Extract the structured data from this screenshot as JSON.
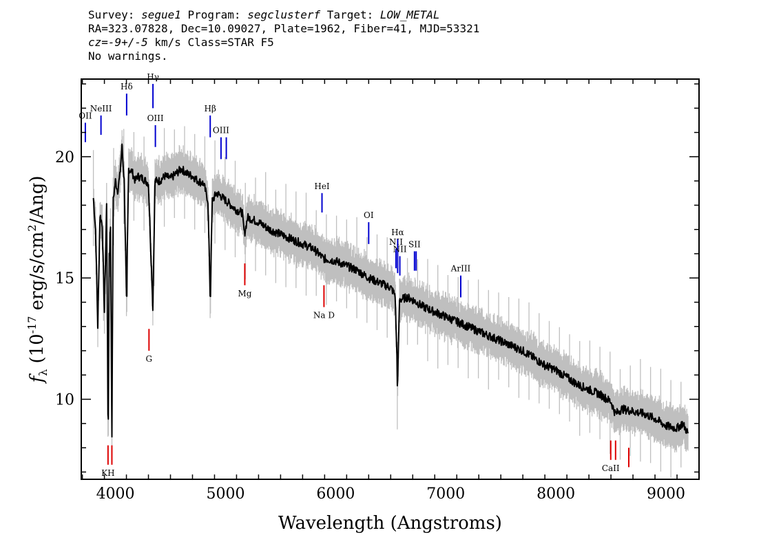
{
  "header": {
    "survey_label": "Survey: ",
    "survey": "segue1",
    "program_label": " Program: ",
    "program": "segclusterf",
    "target_label": " Target: ",
    "target": "LOW_METAL",
    "line2": "RA=323.07828, Dec=10.09027, Plate=1962, Fiber=41, MJD=53321",
    "cz_label": "cz",
    "cz_value": "=-9+/-5",
    "cz_rest": " km/s Class=STAR F5",
    "line4": "No warnings."
  },
  "chart_data": {
    "type": "line",
    "xlabel": "Wavelength (Angstroms)",
    "ylabel": "f_λ (10^-17 erg/s/cm^2/Ang)",
    "xlim": [
      3690,
      9300
    ],
    "ylim": [
      6.7,
      23.2
    ],
    "xticks": [
      4000,
      5000,
      6000,
      7000,
      8000,
      9000
    ],
    "xtick_labels": [
      "4000",
      "5000",
      "6000",
      "7000",
      "8000",
      "9000"
    ],
    "yticks": [
      10,
      15,
      20
    ],
    "ytick_labels": [
      "10",
      "15",
      "20"
    ],
    "series": [
      {
        "color": "#000000",
        "points": [
          [
            3800,
            18.3
          ],
          [
            3820,
            17.0
          ],
          [
            3840,
            13.0
          ],
          [
            3860,
            17.6
          ],
          [
            3880,
            17.2
          ],
          [
            3900,
            13.6
          ],
          [
            3920,
            18.0
          ],
          [
            3933,
            9.2
          ],
          [
            3945,
            16.0
          ],
          [
            3955,
            17.0
          ],
          [
            3968,
            8.6
          ],
          [
            3980,
            18.2
          ],
          [
            4000,
            19.0
          ],
          [
            4020,
            18.6
          ],
          [
            4040,
            19.2
          ],
          [
            4060,
            20.4
          ],
          [
            4080,
            19.0
          ],
          [
            4101,
            14.1
          ],
          [
            4120,
            19.5
          ],
          [
            4150,
            19.4
          ],
          [
            4180,
            19.0
          ],
          [
            4200,
            19.2
          ],
          [
            4250,
            19.1
          ],
          [
            4300,
            18.9
          ],
          [
            4340,
            13.8
          ],
          [
            4360,
            19.0
          ],
          [
            4400,
            19.0
          ],
          [
            4450,
            19.2
          ],
          [
            4500,
            19.1
          ],
          [
            4550,
            19.3
          ],
          [
            4600,
            19.5
          ],
          [
            4650,
            19.3
          ],
          [
            4700,
            19.2
          ],
          [
            4750,
            19.0
          ],
          [
            4800,
            18.9
          ],
          [
            4840,
            18.2
          ],
          [
            4861,
            14.3
          ],
          [
            4880,
            18.2
          ],
          [
            4920,
            18.5
          ],
          [
            4950,
            18.4
          ],
          [
            5000,
            18.2
          ],
          [
            5050,
            18.0
          ],
          [
            5100,
            17.8
          ],
          [
            5150,
            17.7
          ],
          [
            5172,
            16.8
          ],
          [
            5200,
            17.5
          ],
          [
            5300,
            17.3
          ],
          [
            5400,
            17.0
          ],
          [
            5500,
            16.8
          ],
          [
            5600,
            16.6
          ],
          [
            5700,
            16.4
          ],
          [
            5800,
            16.2
          ],
          [
            5890,
            15.8
          ],
          [
            6000,
            15.7
          ],
          [
            6100,
            15.5
          ],
          [
            6200,
            15.3
          ],
          [
            6300,
            15.0
          ],
          [
            6400,
            14.8
          ],
          [
            6500,
            14.6
          ],
          [
            6540,
            14.3
          ],
          [
            6563,
            10.7
          ],
          [
            6580,
            14.1
          ],
          [
            6650,
            14.2
          ],
          [
            6700,
            14.1
          ],
          [
            6800,
            13.8
          ],
          [
            6900,
            13.6
          ],
          [
            7000,
            13.4
          ],
          [
            7100,
            13.2
          ],
          [
            7200,
            13.0
          ],
          [
            7300,
            12.8
          ],
          [
            7400,
            12.6
          ],
          [
            7500,
            12.4
          ],
          [
            7600,
            12.2
          ],
          [
            7700,
            12.0
          ],
          [
            7800,
            11.7
          ],
          [
            7900,
            11.4
          ],
          [
            8000,
            11.2
          ],
          [
            8100,
            10.9
          ],
          [
            8200,
            10.6
          ],
          [
            8300,
            10.4
          ],
          [
            8400,
            10.2
          ],
          [
            8500,
            9.9
          ],
          [
            8540,
            9.4
          ],
          [
            8600,
            9.6
          ],
          [
            8700,
            9.5
          ],
          [
            8800,
            9.4
          ],
          [
            8900,
            9.2
          ],
          [
            9000,
            8.9
          ],
          [
            9100,
            8.8
          ],
          [
            9150,
            9.0
          ],
          [
            9200,
            8.6
          ]
        ]
      }
    ],
    "error_band": {
      "color": "#bfbfbf",
      "width": 0.55
    },
    "emission_lines": [
      {
        "label": "OII",
        "x": 3727,
        "y_top": 21.4,
        "y_bottom": 20.6
      },
      {
        "label": "NeIII",
        "x": 3869,
        "y_top": 21.7,
        "y_bottom": 20.9
      },
      {
        "label": "Hδ",
        "x": 4102,
        "y_top": 22.6,
        "y_bottom": 21.7
      },
      {
        "label": "Hγ",
        "x": 4341,
        "y_top": 23.0,
        "y_bottom": 22.0
      },
      {
        "label": "OIII",
        "x": 4363,
        "y_top": 21.3,
        "y_bottom": 20.4
      },
      {
        "label": "Hβ",
        "x": 4861,
        "y_top": 21.7,
        "y_bottom": 20.8
      },
      {
        "label": "OIII",
        "x": 4959,
        "y_top": 20.8,
        "y_bottom": 19.9
      },
      {
        "label": "",
        "x": 5007,
        "y_top": 20.8,
        "y_bottom": 19.9
      },
      {
        "label": "HeI",
        "x": 5876,
        "y_top": 18.5,
        "y_bottom": 17.7
      },
      {
        "label": "OI",
        "x": 6300,
        "y_top": 17.3,
        "y_bottom": 16.4
      },
      {
        "label": "NII",
        "x": 6548,
        "y_top": 16.2,
        "y_bottom": 15.4
      },
      {
        "label": "Hα",
        "x": 6563,
        "y_top": 16.6,
        "y_bottom": 15.2
      },
      {
        "label": "NII",
        "x": 6583,
        "y_top": 15.9,
        "y_bottom": 15.1
      },
      {
        "label": "SII",
        "x": 6716,
        "y_top": 16.1,
        "y_bottom": 15.3
      },
      {
        "label": "",
        "x": 6731,
        "y_top": 16.1,
        "y_bottom": 15.3
      },
      {
        "label": "ArIII",
        "x": 7136,
        "y_top": 15.1,
        "y_bottom": 14.2
      }
    ],
    "absorption_lines": [
      {
        "label": "Mg",
        "x": 5175,
        "y_top": 15.6,
        "y_bottom": 14.7
      },
      {
        "label": "Na D",
        "x": 5894,
        "y_top": 14.7,
        "y_bottom": 13.8
      },
      {
        "label": "G",
        "x": 4305,
        "y_top": 12.9,
        "y_bottom": 12.0
      },
      {
        "label": "KH",
        "x": 3933,
        "y_top": 8.1,
        "y_bottom": 7.3
      },
      {
        "label": "",
        "x": 3968,
        "y_top": 8.1,
        "y_bottom": 7.3
      },
      {
        "label": "CaII",
        "x": 8498,
        "y_top": 8.3,
        "y_bottom": 7.5
      },
      {
        "label": "",
        "x": 8542,
        "y_top": 8.3,
        "y_bottom": 7.5
      },
      {
        "label": "",
        "x": 8662,
        "y_top": 8.0,
        "y_bottom": 7.2
      }
    ],
    "colors": {
      "spectrum": "#000000",
      "noise": "#bfbfbf",
      "emission": "#0000d0",
      "absorption": "#dd0000",
      "dark_marker": "#333333"
    }
  }
}
